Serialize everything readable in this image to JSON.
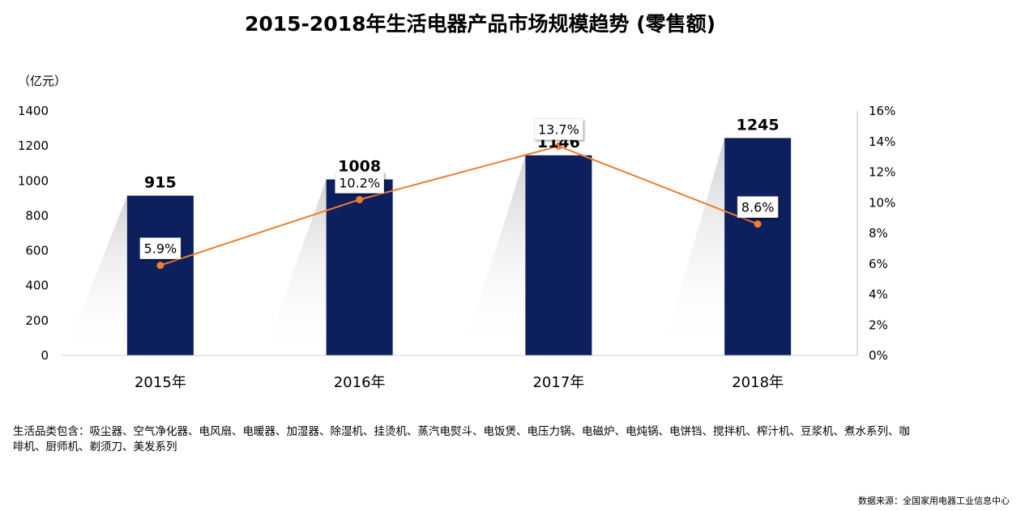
{
  "chart_data": {
    "type": "bar",
    "title": "2015-2018年生活电器产品市场规模趋势 (零售额)",
    "ylabel": "（亿元）",
    "categories": [
      "2015年",
      "2016年",
      "2017年",
      "2018年"
    ],
    "series": [
      {
        "type": "bar",
        "axis": "left",
        "values": [
          915,
          1008,
          1146,
          1245
        ],
        "color": "#0d1f5c"
      },
      {
        "type": "line",
        "axis": "right",
        "values": [
          5.9,
          10.2,
          13.7,
          8.6
        ],
        "labels": [
          "5.9%",
          "10.2%",
          "13.7%",
          "8.6%"
        ],
        "color": "#ed7d31"
      }
    ],
    "ylim": [
      0,
      1400
    ],
    "y_ticks": [
      "0",
      "200",
      "400",
      "600",
      "800",
      "1000",
      "1200",
      "1400"
    ],
    "y2lim": [
      0,
      16
    ],
    "y2_ticks": [
      "0%",
      "2%",
      "4%",
      "6%",
      "8%",
      "10%",
      "12%",
      "14%",
      "16%"
    ],
    "grid": false,
    "legend": "none"
  },
  "footnote": "生活品类包含：吸尘器、空气净化器、电风扇、电暖器、加湿器、除湿机、挂烫机、蒸汽电熨斗、电饭煲、电压力锅、电磁炉、电炖锅、电饼铛、搅拌机、榨汁机、豆浆机、煮水系列、咖啡机、厨师机、剃须刀、美发系列",
  "source": "数据来源：全国家用电器工业信息中心"
}
